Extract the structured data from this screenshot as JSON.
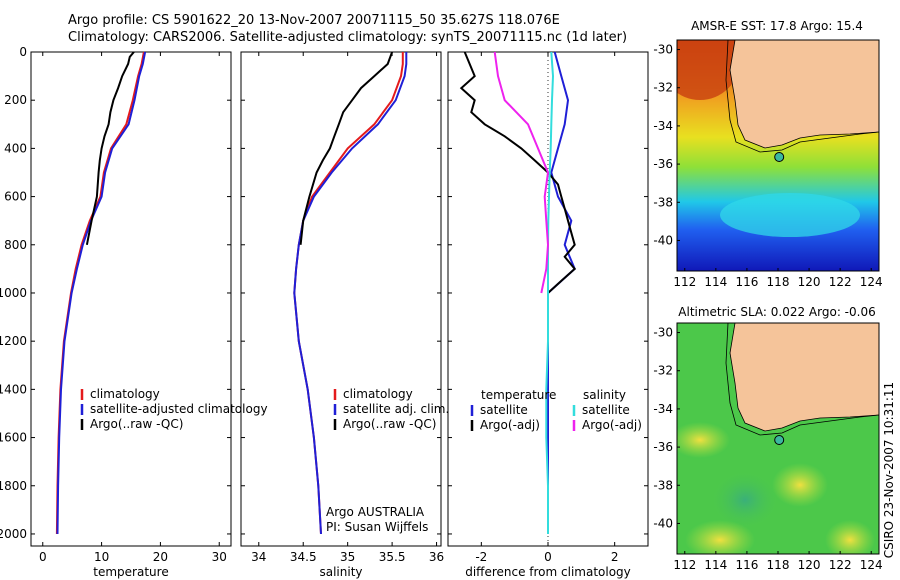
{
  "header": {
    "line1": "Argo profile: CS 5901622_20 13-Nov-2007 20071115_50 35.627S 118.076E",
    "line2": "Climatology: CARS2006. Satellite-adjusted climatology: synTS_20071115.nc (1d later)"
  },
  "chart_data": [
    {
      "type": "line",
      "panel": "temperature",
      "xlabel": "temperature",
      "ylabel": "",
      "xlim": [
        -2,
        32
      ],
      "ylim": [
        2050,
        0
      ],
      "y_reversed": true,
      "x_ticks": [
        0,
        10,
        20,
        30
      ],
      "y_ticks": [
        0,
        200,
        400,
        600,
        800,
        1000,
        1200,
        1400,
        1600,
        1800,
        2000
      ],
      "grid": false,
      "legend_position": "lower-right",
      "legend": [
        "climatology",
        "satellite-adjusted climatology",
        "Argo(..raw -QC)"
      ],
      "colors": [
        "#e41a1c",
        "#1f1fd6",
        "#000000"
      ],
      "series": [
        {
          "name": "climatology",
          "y": [
            0,
            50,
            100,
            200,
            300,
            400,
            500,
            600,
            700,
            800,
            900,
            1000,
            1200,
            1400,
            1600,
            1800,
            2000
          ],
          "values": [
            17.2,
            16.8,
            16.2,
            15.3,
            14.2,
            11.6,
            10.4,
            9.8,
            8.0,
            6.6,
            5.6,
            4.8,
            3.6,
            3.0,
            2.7,
            2.5,
            2.4
          ]
        },
        {
          "name": "satellite-adjusted climatology",
          "y": [
            0,
            50,
            100,
            200,
            300,
            400,
            500,
            600,
            700,
            800,
            900,
            1000,
            1200,
            1400,
            1600,
            1800,
            2000
          ],
          "values": [
            17.4,
            17.0,
            16.4,
            15.6,
            14.6,
            11.8,
            10.6,
            10.0,
            8.2,
            6.8,
            5.8,
            4.9,
            3.7,
            3.1,
            2.8,
            2.6,
            2.5
          ]
        },
        {
          "name": "Argo(..raw -QC)",
          "y": [
            0,
            20,
            50,
            100,
            150,
            200,
            250,
            300,
            350,
            400,
            450,
            500,
            600,
            700,
            800
          ],
          "values": [
            15.5,
            14.8,
            14.5,
            13.5,
            12.8,
            12.0,
            11.5,
            11.2,
            10.5,
            10.0,
            9.7,
            9.5,
            9.2,
            8.3,
            7.5
          ]
        }
      ]
    },
    {
      "type": "line",
      "panel": "salinity",
      "xlabel": "salinity",
      "ylabel": "",
      "xlim": [
        33.8,
        36.05
      ],
      "ylim": [
        2050,
        0
      ],
      "y_reversed": true,
      "x_ticks": [
        34,
        34.5,
        35,
        35.5,
        36
      ],
      "grid": false,
      "legend_position": "lower-right",
      "legend": [
        "climatology",
        "satellite adj. clim.",
        "Argo(..raw -QC)"
      ],
      "colors": [
        "#e41a1c",
        "#1f1fd6",
        "#000000"
      ],
      "annotation": [
        "Argo AUSTRALIA",
        "PI: Susan Wijffels"
      ],
      "series": [
        {
          "name": "climatology",
          "y": [
            0,
            50,
            100,
            200,
            300,
            400,
            500,
            600,
            700,
            800,
            900,
            1000,
            1200,
            1400,
            1600,
            1800,
            2000
          ],
          "values": [
            35.62,
            35.62,
            35.6,
            35.5,
            35.3,
            35.0,
            34.8,
            34.6,
            34.5,
            34.45,
            34.42,
            34.4,
            34.45,
            34.55,
            34.62,
            34.67,
            34.7
          ]
        },
        {
          "name": "satellite adj. clim.",
          "y": [
            0,
            50,
            100,
            200,
            300,
            400,
            500,
            600,
            700,
            800,
            900,
            1000,
            1200,
            1400,
            1600,
            1800,
            2000
          ],
          "values": [
            35.66,
            35.66,
            35.64,
            35.54,
            35.34,
            35.05,
            34.82,
            34.62,
            34.5,
            34.45,
            34.42,
            34.4,
            34.45,
            34.55,
            34.62,
            34.67,
            34.7
          ]
        },
        {
          "name": "Argo(..raw -QC)",
          "y": [
            0,
            50,
            100,
            150,
            200,
            250,
            300,
            350,
            400,
            450,
            500,
            600,
            700,
            800
          ],
          "values": [
            35.5,
            35.45,
            35.3,
            35.15,
            35.05,
            34.95,
            34.9,
            34.85,
            34.8,
            34.72,
            34.65,
            34.57,
            34.5,
            34.47
          ]
        }
      ]
    },
    {
      "type": "line",
      "panel": "difference",
      "xlabel": "difference from climatology",
      "ylabel": "",
      "xlim": [
        -3,
        3
      ],
      "ylim": [
        2050,
        0
      ],
      "y_reversed": true,
      "x_ticks": [
        -2,
        0,
        2
      ],
      "grid": false,
      "legend_position": "lower",
      "legend_temperature_title": "temperature",
      "legend_salinity_title": "salinity",
      "legend": [
        "satellite",
        "Argo(-adj)",
        "satellite",
        "Argo(-adj)"
      ],
      "colors": [
        "#1f1fd6",
        "#000000",
        "#33dddd",
        "#ee22ee"
      ],
      "series": [
        {
          "name": "satellite",
          "variable": "temperature",
          "y": [
            0,
            100,
            200,
            300,
            400,
            500,
            600,
            700,
            800,
            900,
            1000,
            1200,
            1400,
            1600,
            1800,
            2000
          ],
          "values": [
            0.2,
            0.4,
            0.6,
            0.5,
            0.3,
            0.1,
            0.3,
            0.7,
            0.5,
            0.8,
            0.0,
            0.0,
            0.0,
            0.0,
            0.0,
            0.0
          ]
        },
        {
          "name": "Argo(-adj)",
          "variable": "temperature",
          "y": [
            0,
            100,
            150,
            200,
            250,
            300,
            350,
            400,
            450,
            500,
            550,
            600,
            650,
            700,
            750,
            800,
            850,
            900,
            950,
            1000
          ],
          "values": [
            -2.5,
            -2.2,
            -2.6,
            -2.2,
            -2.3,
            -1.9,
            -1.3,
            -0.8,
            -0.4,
            0.0,
            0.3,
            0.4,
            0.5,
            0.6,
            0.7,
            0.8,
            0.5,
            0.8,
            0.4,
            0.0
          ]
        },
        {
          "name": "satellite",
          "variable": "salinity",
          "y": [
            0,
            100,
            200,
            300,
            400,
            500,
            600,
            700,
            800,
            900,
            1000,
            1200,
            1400,
            1600,
            1800,
            2000
          ],
          "values": [
            0.1,
            0.15,
            0.12,
            0.1,
            0.08,
            0.05,
            0.03,
            0.01,
            0.0,
            0.0,
            0.0,
            0.0,
            -0.05,
            -0.05,
            0.0,
            0.0
          ]
        },
        {
          "name": "Argo(-adj)",
          "variable": "salinity",
          "y": [
            0,
            100,
            200,
            300,
            400,
            500,
            600,
            700,
            800,
            900,
            1000
          ],
          "values": [
            -1.6,
            -1.5,
            -1.3,
            -0.6,
            -0.3,
            0.0,
            -0.1,
            -0.05,
            0.0,
            -0.05,
            -0.2
          ]
        }
      ]
    },
    {
      "type": "heatmap",
      "panel": "map-sst",
      "title": "AMSR-E SST: 17.8 Argo: 15.4",
      "x_ticks": [
        112,
        114,
        116,
        118,
        120,
        122,
        124
      ],
      "y_ticks": [
        -30,
        -32,
        -34,
        -36,
        -38,
        -40
      ],
      "xlim": [
        111.5,
        124.5
      ],
      "ylim": [
        -41.6,
        -29.5
      ],
      "argo_position": [
        118.076,
        -35.627
      ]
    },
    {
      "type": "heatmap",
      "panel": "map-sla",
      "title": "Altimetric SLA: 0.022 Argo: -0.06",
      "x_ticks": [
        112,
        114,
        116,
        118,
        120,
        122,
        124
      ],
      "y_ticks": [
        -30,
        -32,
        -34,
        -36,
        -38,
        -40
      ],
      "xlim": [
        111.5,
        124.5
      ],
      "ylim": [
        -41.6,
        -29.5
      ],
      "argo_position": [
        118.076,
        -35.627
      ]
    }
  ],
  "footer": {
    "credit": "CSIRO 23-Nov-2007 10:31:11"
  },
  "colors": {
    "land": "#f5c49a",
    "axes": "#000000"
  }
}
